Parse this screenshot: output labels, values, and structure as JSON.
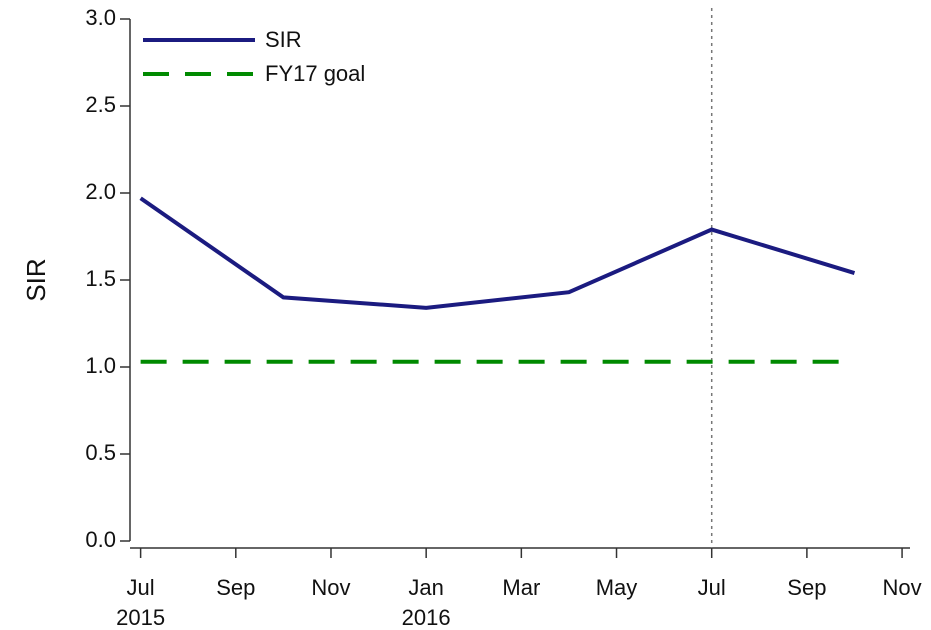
{
  "chart_data": {
    "type": "line",
    "y_label": "SIR",
    "x": [
      "2015-07",
      "2015-10",
      "2016-01",
      "2016-04",
      "2016-07",
      "2016-10"
    ],
    "series": [
      {
        "name": "SIR",
        "color": "#1b1b80",
        "dash": "solid",
        "values": [
          1.97,
          1.4,
          1.34,
          1.43,
          1.79,
          1.54
        ]
      },
      {
        "name": "FY17 goal",
        "color": "#008a00",
        "dash": "dashed",
        "values": [
          1.03,
          1.03,
          1.03,
          1.03,
          1.03,
          1.03
        ]
      }
    ],
    "xlim": [
      "2015-06-18",
      "2016-11-06"
    ],
    "xticks": [
      {
        "value": "2015-07",
        "label": "Jul\n2015"
      },
      {
        "value": "2015-09",
        "label": "Sep"
      },
      {
        "value": "2015-11",
        "label": "Nov"
      },
      {
        "value": "2016-01",
        "label": "Jan\n2016"
      },
      {
        "value": "2016-03",
        "label": "Mar"
      },
      {
        "value": "2016-05",
        "label": "May"
      },
      {
        "value": "2016-07",
        "label": "Jul"
      },
      {
        "value": "2016-09",
        "label": "Sep"
      },
      {
        "value": "2016-11",
        "label": "Nov"
      }
    ],
    "ylim": [
      0,
      3
    ],
    "yticks": [
      {
        "value": 0,
        "label": "0.0"
      },
      0.5,
      {
        "value": 1,
        "label": "1.0"
      },
      1.5,
      {
        "value": 2,
        "label": "2.0"
      },
      2.5,
      {
        "value": 3,
        "label": "3.0"
      }
    ],
    "vline": "2016-07",
    "legend": "top-left",
    "grid": false
  }
}
